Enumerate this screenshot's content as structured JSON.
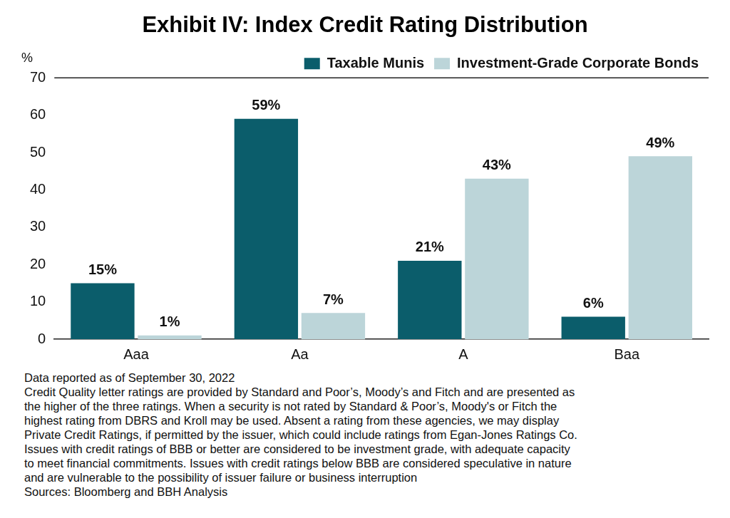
{
  "chart_data": {
    "type": "bar",
    "title": "Exhibit IV: Index Credit Rating Distribution",
    "y_label": "%",
    "categories": [
      "Aaa",
      "Aa",
      "A",
      "Baa"
    ],
    "series": [
      {
        "name": "Taxable Munis",
        "color": "#0b5d6b",
        "values": [
          15,
          59,
          21,
          6
        ],
        "value_labels": [
          "15%",
          "59%",
          "21%",
          "6%"
        ]
      },
      {
        "name": "Investment-Grade Corporate Bonds",
        "color": "#bcd5d9",
        "values": [
          1,
          7,
          43,
          49
        ],
        "value_labels": [
          "1%",
          "7%",
          "43%",
          "49%"
        ]
      }
    ],
    "ylim": [
      0,
      70
    ],
    "yticks": [
      0,
      10,
      20,
      30,
      40,
      50,
      60,
      70
    ],
    "grid": false,
    "legend": "upper right",
    "data_labels": true,
    "annotations": [
      "Data reported as of September 30, 2022",
      "Credit Quality letter ratings are provided by Standard and Poor’s, Moody’s and Fitch and are presented as",
      "the higher of the three ratings. When a security is not rated by Standard & Poor’s, Moody's or Fitch the",
      "highest rating from DBRS and Kroll may be used. Absent a rating from these agencies, we may display",
      "Private Credit Ratings, if permitted by the issuer, which could include ratings from Egan-Jones Ratings Co.",
      "Issues with credit ratings of BBB or better are considered to be investment grade, with adequate capacity",
      "to meet financial commitments. Issues with credit ratings below BBB are considered speculative in nature",
      "and are vulnerable to the possibility of issuer failure or business interruption",
      "Sources: Bloomberg and BBH Analysis"
    ]
  }
}
